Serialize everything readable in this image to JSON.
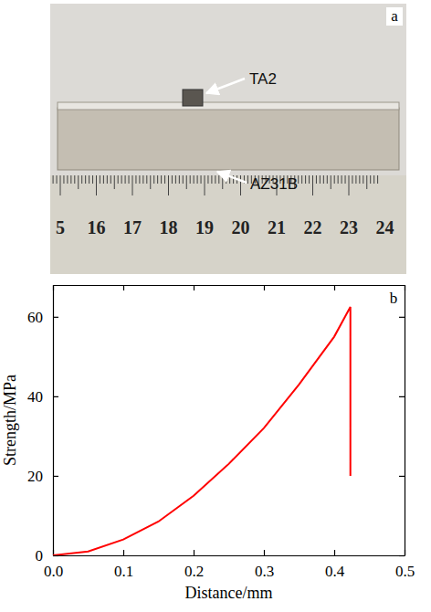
{
  "photo": {
    "letter": "a",
    "labels": [
      "TA2",
      "AZ31B"
    ],
    "ruler_numbers": [
      5,
      16,
      17,
      18,
      19,
      20,
      21,
      22,
      23,
      24
    ]
  },
  "chart_data": {
    "type": "line",
    "panel_label": "b",
    "x_label": "Distance/mm",
    "y_label": "Strength/MPa",
    "x": [
      0,
      0.05,
      0.1,
      0.15,
      0.2,
      0.25,
      0.3,
      0.35,
      0.4,
      0.423,
      0.423
    ],
    "values": [
      0,
      1,
      4,
      8.5,
      15,
      23,
      32,
      43,
      55,
      62.5,
      20
    ],
    "color": "#ff0000",
    "xlim": [
      0,
      0.5
    ],
    "xticks": [
      {
        "value": 0,
        "label": "0.0"
      },
      {
        "value": 0.1,
        "label": "0.1"
      },
      {
        "value": 0.2,
        "label": "0.2"
      },
      {
        "value": 0.3,
        "label": "0.3"
      },
      {
        "value": 0.4,
        "label": "0.4"
      },
      {
        "value": 0.5,
        "label": "0.5"
      }
    ],
    "ylim": [
      0,
      68
    ],
    "yticks": [
      0,
      20,
      40,
      60
    ],
    "grid": false
  }
}
